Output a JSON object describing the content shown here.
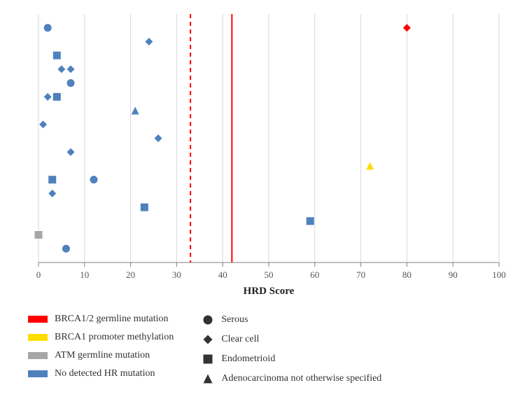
{
  "chart": {
    "type": "scatter",
    "x_label": "HRD Score",
    "xlim": [
      0,
      100
    ],
    "xtick_step": 10,
    "plot_bg": "#ffffff",
    "grid_color": "#d9d9d9",
    "axis_color": "#808080",
    "tick_fontsize": 13,
    "label_fontsize": 15,
    "marker_size": 11,
    "vlines": [
      {
        "x": 33,
        "color": "#ff0000",
        "dash": "6,5",
        "width": 2
      },
      {
        "x": 42,
        "color": "#ff0000",
        "dash": "none",
        "width": 2
      }
    ],
    "points": [
      {
        "x": 2,
        "y": 20,
        "shape": "circle",
        "color": "#4f81bd"
      },
      {
        "x": 24,
        "y": 19,
        "shape": "diamond",
        "color": "#4f81bd"
      },
      {
        "x": 80,
        "y": 20,
        "shape": "diamond",
        "color": "#ff0000"
      },
      {
        "x": 4,
        "y": 18,
        "shape": "square",
        "color": "#4f81bd"
      },
      {
        "x": 5,
        "y": 17,
        "shape": "diamond",
        "color": "#4f81bd"
      },
      {
        "x": 7,
        "y": 17,
        "shape": "diamond",
        "color": "#4f81bd"
      },
      {
        "x": 7,
        "y": 16,
        "shape": "circle",
        "color": "#4f81bd"
      },
      {
        "x": 2,
        "y": 15,
        "shape": "diamond",
        "color": "#4f81bd"
      },
      {
        "x": 4,
        "y": 15,
        "shape": "square",
        "color": "#4f81bd"
      },
      {
        "x": 21,
        "y": 14,
        "shape": "triangle",
        "color": "#4f81bd"
      },
      {
        "x": 1,
        "y": 13,
        "shape": "diamond",
        "color": "#4f81bd"
      },
      {
        "x": 26,
        "y": 12,
        "shape": "diamond",
        "color": "#4f81bd"
      },
      {
        "x": 7,
        "y": 11,
        "shape": "diamond",
        "color": "#4f81bd"
      },
      {
        "x": 72,
        "y": 10,
        "shape": "triangle",
        "color": "#ffdd00"
      },
      {
        "x": 3,
        "y": 9,
        "shape": "square",
        "color": "#4f81bd"
      },
      {
        "x": 12,
        "y": 9,
        "shape": "circle",
        "color": "#4f81bd"
      },
      {
        "x": 3,
        "y": 8,
        "shape": "diamond",
        "color": "#4f81bd"
      },
      {
        "x": 23,
        "y": 7,
        "shape": "square",
        "color": "#4f81bd"
      },
      {
        "x": 59,
        "y": 6,
        "shape": "square",
        "color": "#4f81bd"
      },
      {
        "x": 0,
        "y": 5,
        "shape": "square",
        "color": "#a6a6a6"
      },
      {
        "x": 6,
        "y": 4,
        "shape": "circle",
        "color": "#4f81bd"
      }
    ]
  },
  "legend": {
    "colors": [
      {
        "label": "BRCA1/2 germline mutation",
        "color": "#ff0000"
      },
      {
        "label": "BRCA1 promoter methylation",
        "color": "#ffdd00"
      },
      {
        "label": "ATM germline mutation",
        "color": "#a6a6a6"
      },
      {
        "label": "No detected HR mutation",
        "color": "#4f81bd"
      }
    ],
    "shapes": [
      {
        "label": "Serous",
        "shape": "circle"
      },
      {
        "label": "Clear cell",
        "shape": "diamond"
      },
      {
        "label": "Endometrioid",
        "shape": "square"
      },
      {
        "label": "Adenocarcinoma not otherwise specified",
        "shape": "triangle"
      }
    ],
    "shape_color": "#333333"
  }
}
